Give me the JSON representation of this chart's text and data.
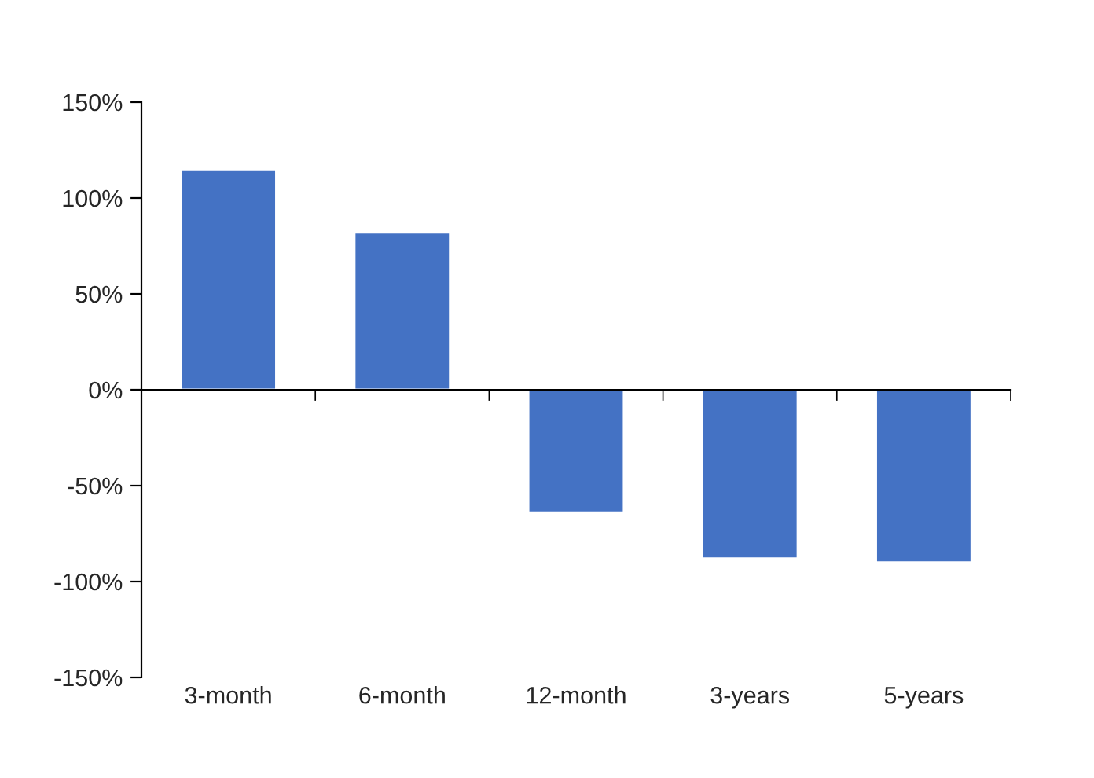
{
  "chart_data": {
    "type": "bar",
    "categories": [
      "3-month",
      "6-month",
      "12-month",
      "3-years",
      "5-years"
    ],
    "values": [
      115,
      82,
      -64,
      -88,
      -90
    ],
    "color": "#4472c4",
    "ylim": [
      -150,
      150
    ],
    "yticks": [
      {
        "value": -150,
        "label": "-150%"
      },
      {
        "value": -100,
        "label": "-100%"
      },
      {
        "value": -50,
        "label": "-50%"
      },
      {
        "value": 0,
        "label": "0%"
      },
      {
        "value": 50,
        "label": "50%"
      },
      {
        "value": 100,
        "label": "100%"
      },
      {
        "value": 150,
        "label": "150%"
      }
    ],
    "legend": false
  }
}
